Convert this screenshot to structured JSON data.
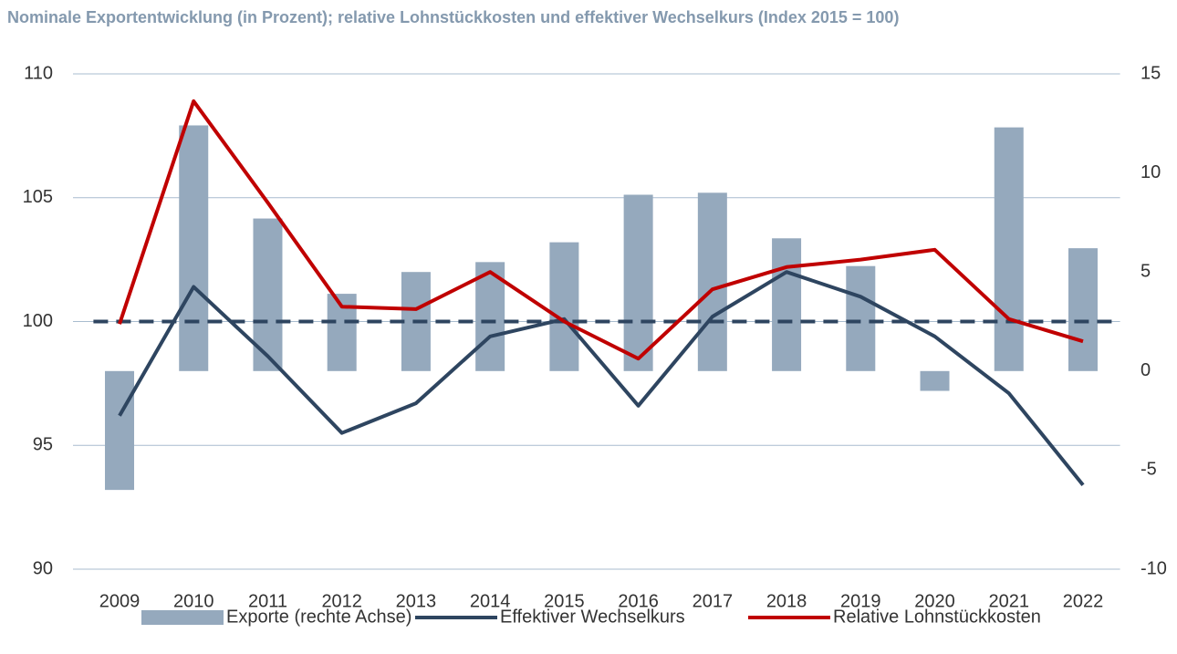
{
  "chart_data": {
    "type": "combo",
    "title": "Nominale Exportentwicklung (in Prozent); relative Lohnstückkosten und effektiver Wechselkurs (Index 2015 = 100)",
    "categories": [
      "2009",
      "2010",
      "2011",
      "2012",
      "2013",
      "2014",
      "2015",
      "2016",
      "2017",
      "2018",
      "2019",
      "2020",
      "2021",
      "2022"
    ],
    "series": [
      {
        "name": "Exporte (rechte Achse)",
        "type": "bar",
        "axis": "y2",
        "color": "#95a9bd",
        "values": [
          -6.0,
          12.4,
          7.7,
          3.9,
          5.0,
          5.5,
          6.5,
          8.9,
          9.0,
          6.7,
          5.3,
          -1.0,
          12.3,
          6.2
        ]
      },
      {
        "name": "Effektiver Wechselkurs",
        "type": "line",
        "color": "#2e4560",
        "values": [
          96.2,
          101.4,
          98.6,
          95.5,
          96.7,
          99.4,
          100.1,
          96.6,
          100.2,
          102.0,
          101.0,
          99.4,
          97.1,
          93.4
        ]
      },
      {
        "name": "Relative Lohnstückkosten",
        "type": "line",
        "color": "#c00000",
        "values": [
          99.9,
          108.9,
          104.8,
          100.6,
          100.5,
          102.0,
          100.0,
          98.5,
          101.3,
          102.2,
          102.5,
          102.9,
          100.1,
          99.2
        ]
      }
    ],
    "reference_line": 100,
    "ylim": [
      90,
      110
    ],
    "yticks": [
      90,
      95,
      100,
      105,
      110
    ],
    "y2lim": [
      -10,
      15
    ],
    "y2ticks": [
      -10,
      -5,
      0,
      5,
      10,
      15
    ],
    "grid": true,
    "legend": "bottom"
  }
}
